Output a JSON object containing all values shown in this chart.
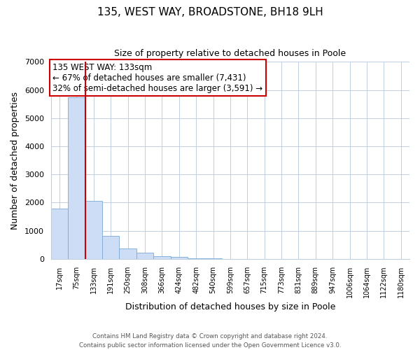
{
  "title_line1": "135, WEST WAY, BROADSTONE, BH18 9LH",
  "title_line2": "Size of property relative to detached houses in Poole",
  "xlabel": "Distribution of detached houses by size in Poole",
  "ylabel": "Number of detached properties",
  "bar_labels": [
    "17sqm",
    "75sqm",
    "133sqm",
    "191sqm",
    "250sqm",
    "308sqm",
    "366sqm",
    "424sqm",
    "482sqm",
    "540sqm",
    "599sqm",
    "657sqm",
    "715sqm",
    "773sqm",
    "831sqm",
    "889sqm",
    "947sqm",
    "1006sqm",
    "1064sqm",
    "1122sqm",
    "1180sqm"
  ],
  "bar_values": [
    1780,
    5750,
    2060,
    810,
    370,
    230,
    105,
    80,
    30,
    15,
    8,
    5,
    3,
    0,
    0,
    0,
    0,
    0,
    0,
    0,
    0
  ],
  "bar_color": "#ccddf5",
  "bar_edge_color": "#7aaad8",
  "vline_x_index": 2,
  "vline_color": "#cc0000",
  "ylim": [
    0,
    7000
  ],
  "yticks": [
    0,
    1000,
    2000,
    3000,
    4000,
    5000,
    6000,
    7000
  ],
  "annotation_box_text": "135 WEST WAY: 133sqm\n← 67% of detached houses are smaller (7,431)\n32% of semi-detached houses are larger (3,591) →",
  "footer_line1": "Contains HM Land Registry data © Crown copyright and database right 2024.",
  "footer_line2": "Contains public sector information licensed under the Open Government Licence v3.0.",
  "bg_color": "#ffffff",
  "grid_color": "#c0cfe0",
  "box_edge_color": "#cc0000"
}
